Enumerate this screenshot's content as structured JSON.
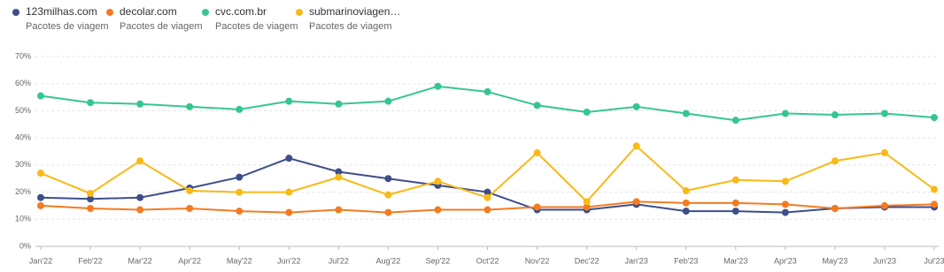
{
  "chart_data": {
    "type": "line",
    "legend_subtitle": "Pacotes de viagem",
    "categories": [
      "Jan'22",
      "Feb'22",
      "Mar'22",
      "Apr'22",
      "May'22",
      "Jun'22",
      "Jul'22",
      "Aug'22",
      "Sep'22",
      "Oct'22",
      "Nov'22",
      "Dec'22",
      "Jan'23",
      "Feb'23",
      "Mar'23",
      "Apr'23",
      "May'23",
      "Jun'23",
      "Jul'23"
    ],
    "series": [
      {
        "name": "123milhas.com",
        "color": "#3d4e8a",
        "values": [
          18,
          17.5,
          18,
          21.5,
          25.5,
          32.5,
          27.5,
          25,
          22.5,
          20,
          13.5,
          13.5,
          15.5,
          13,
          13,
          12.5,
          14,
          14.5,
          14.5
        ]
      },
      {
        "name": "decolar.com",
        "color": "#f47b20",
        "values": [
          15,
          14,
          13.5,
          14,
          13,
          12.5,
          13.5,
          12.5,
          13.5,
          13.5,
          14.5,
          14.5,
          16.5,
          16,
          16,
          15.5,
          14,
          15,
          15.5
        ]
      },
      {
        "name": "cvc.com.br",
        "color": "#35c690",
        "values": [
          55.5,
          53,
          52.5,
          51.5,
          50.5,
          53.5,
          52.5,
          53.5,
          59,
          57,
          52,
          49.5,
          51.5,
          49,
          46.5,
          49,
          48.5,
          49,
          47.5
        ]
      },
      {
        "name": "submarinoviagen…",
        "color": "#f9b916",
        "values": [
          27,
          19.5,
          31.5,
          20.5,
          20,
          20,
          25.5,
          19,
          24,
          18,
          34.5,
          16.5,
          37,
          20.5,
          24.5,
          24,
          31.5,
          34.5,
          21
        ]
      }
    ],
    "ylim": [
      0,
      70
    ],
    "yticks": [
      {
        "value": 0,
        "label": "0%"
      },
      {
        "value": 10,
        "label": "10%"
      },
      {
        "value": 20,
        "label": "20%"
      },
      {
        "value": 30,
        "label": "30%"
      },
      {
        "value": 40,
        "label": "40%"
      },
      {
        "value": 50,
        "label": "50%"
      },
      {
        "value": 60,
        "label": "60%"
      },
      {
        "value": 70,
        "label": "70%"
      }
    ],
    "grid": true
  }
}
